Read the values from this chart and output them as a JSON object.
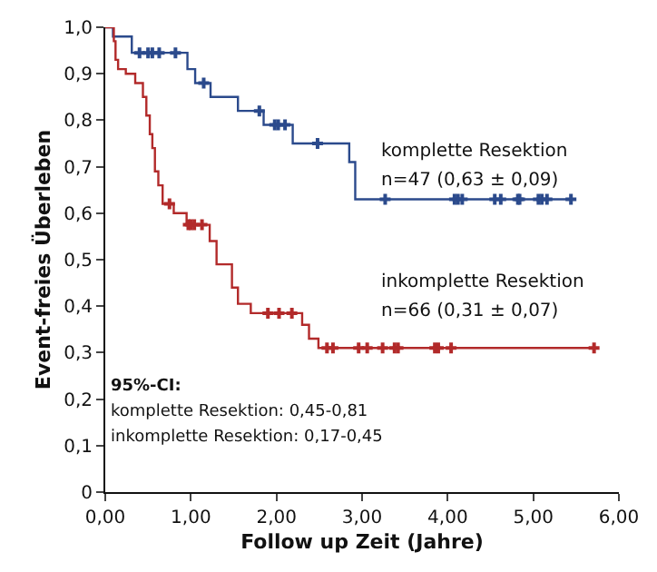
{
  "chart_data": {
    "type": "step",
    "xlabel": "Follow up Zeit (Jahre)",
    "ylabel": "Event-freies Überleben",
    "xlim": [
      0,
      6
    ],
    "xticks": [
      {
        "value": 0,
        "label": "0,00"
      },
      {
        "value": 1,
        "label": "1,00"
      },
      {
        "value": 2,
        "label": "2,00"
      },
      {
        "value": 3,
        "label": "3,00"
      },
      {
        "value": 4,
        "label": "4,00"
      },
      {
        "value": 5,
        "label": "5,00"
      },
      {
        "value": 6,
        "label": "6,00"
      }
    ],
    "ylim": [
      0,
      1
    ],
    "yticks": [
      0,
      {
        "value": 0.1,
        "label": "0,1"
      },
      {
        "value": 0.2,
        "label": "0,2"
      },
      {
        "value": 0.3,
        "label": "0,3"
      },
      {
        "value": 0.4,
        "label": "0,4"
      },
      {
        "value": 0.5,
        "label": "0,5"
      },
      {
        "value": 0.6,
        "label": "0,6"
      },
      {
        "value": 0.7,
        "label": "0,7"
      },
      {
        "value": 0.8,
        "label": "0,8"
      },
      {
        "value": 0.9,
        "label": "0,9"
      },
      {
        "value": 1,
        "label": "1,0"
      }
    ],
    "grid": false,
    "series": [
      {
        "color": "#2b4a8c",
        "x": [
          0,
          0.09,
          0.31,
          0.96,
          1.05,
          1.23,
          1.55,
          1.85,
          2.19,
          2.85,
          2.92,
          5.44
        ],
        "values": [
          1,
          0.98,
          0.945,
          0.91,
          0.88,
          0.85,
          0.82,
          0.79,
          0.75,
          0.71,
          0.63,
          0.63
        ]
      },
      {
        "color": "#b22a2a",
        "x": [
          0,
          0.1,
          0.12,
          0.15,
          0.24,
          0.35,
          0.44,
          0.48,
          0.52,
          0.55,
          0.58,
          0.62,
          0.67,
          0.8,
          0.95,
          1.22,
          1.3,
          1.48,
          1.55,
          1.7,
          2.3,
          2.38,
          2.49,
          5.71
        ],
        "values": [
          1,
          0.97,
          0.93,
          0.91,
          0.9,
          0.88,
          0.85,
          0.81,
          0.77,
          0.74,
          0.69,
          0.66,
          0.62,
          0.6,
          0.575,
          0.54,
          0.49,
          0.44,
          0.405,
          0.385,
          0.36,
          0.33,
          0.31,
          0.31
        ]
      },
      {
        "type": "scatter",
        "marker": "cross",
        "color": "#2b4a8c",
        "x": [
          0.4,
          0.5,
          0.55,
          0.63,
          0.82,
          1.15,
          1.8,
          1.98,
          2.02,
          2.1,
          2.48,
          3.27,
          4.08,
          4.12,
          4.17,
          4.55,
          4.62,
          4.82,
          4.84,
          5.06,
          5.1,
          5.16,
          5.44
        ],
        "values": [
          0.945,
          0.945,
          0.945,
          0.945,
          0.945,
          0.88,
          0.82,
          0.79,
          0.79,
          0.79,
          0.75,
          0.63,
          0.63,
          0.63,
          0.63,
          0.63,
          0.63,
          0.63,
          0.63,
          0.63,
          0.63,
          0.63,
          0.63
        ]
      },
      {
        "type": "scatter",
        "marker": "cross",
        "color": "#b22a2a",
        "x": [
          0.75,
          0.97,
          1.0,
          1.04,
          1.13,
          1.9,
          2.03,
          2.18,
          2.59,
          2.66,
          2.96,
          3.06,
          3.24,
          3.38,
          3.42,
          3.85,
          3.89,
          4.04,
          5.71
        ],
        "values": [
          0.62,
          0.575,
          0.575,
          0.575,
          0.575,
          0.385,
          0.385,
          0.385,
          0.31,
          0.31,
          0.31,
          0.31,
          0.31,
          0.31,
          0.31,
          0.31,
          0.31,
          0.31,
          0.31
        ]
      }
    ],
    "annotations": [
      "komplette Resektion",
      "n=47 (0,63 ± 0,09)",
      "inkomplette Resektion",
      "n=66 (0,31 ± 0,07)",
      "95%-CI:",
      "komplette Resektion: 0,45-0,81",
      "inkomplette Resektion: 0,17-0,45"
    ]
  }
}
